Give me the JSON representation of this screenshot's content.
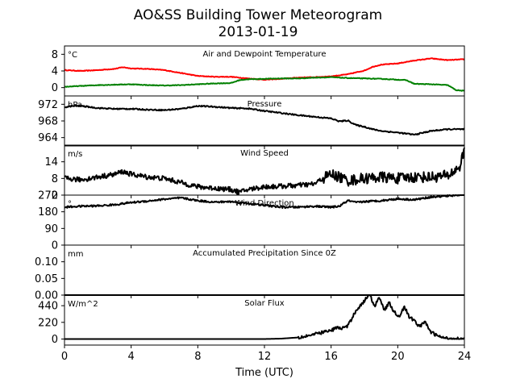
{
  "figure": {
    "title_line1": "AO&SS Building Tower Meteorogram",
    "title_line2": "2013-01-19",
    "xlabel": "Time (UTC)"
  },
  "chart_data": [
    {
      "type": "line",
      "title": "Air and Dewpoint Temperature",
      "unit": "°C",
      "ylim": [
        -2,
        10
      ],
      "yticks": [
        0,
        4,
        8
      ],
      "xlim": [
        0,
        24
      ],
      "xticks": [
        0,
        4,
        8,
        12,
        16,
        20,
        24
      ],
      "series": [
        {
          "color": "#ff0000",
          "x": [
            0,
            1,
            2,
            3,
            3.5,
            4,
            5,
            6,
            7,
            8,
            9,
            10,
            11,
            12,
            13,
            14,
            15,
            16,
            17,
            18,
            18.5,
            19,
            20,
            21,
            22,
            23,
            24
          ],
          "y": [
            4.2,
            4.0,
            4.2,
            4.5,
            4.9,
            4.6,
            4.5,
            4.2,
            3.5,
            2.8,
            2.6,
            2.6,
            2.2,
            1.9,
            2.1,
            2.4,
            2.5,
            2.7,
            3.2,
            4.1,
            5.0,
            5.5,
            5.8,
            6.5,
            7.0,
            6.6,
            6.8
          ]
        },
        {
          "color": "#008000",
          "x": [
            0,
            1,
            2,
            3,
            4,
            5,
            6,
            7,
            8,
            9,
            10,
            10.5,
            11,
            12,
            13,
            14,
            15,
            16,
            17,
            18,
            19,
            20,
            20.5,
            21,
            22,
            23,
            23.5,
            24
          ],
          "y": [
            0.2,
            0.4,
            0.6,
            0.7,
            0.8,
            0.6,
            0.5,
            0.6,
            0.8,
            1.0,
            1.1,
            1.8,
            2.0,
            2.1,
            2.2,
            2.2,
            2.4,
            2.5,
            2.3,
            2.2,
            2.1,
            1.9,
            1.8,
            0.9,
            0.8,
            0.6,
            -0.6,
            -0.8
          ]
        }
      ]
    },
    {
      "type": "line",
      "title": "Pressure",
      "unit": "hPa",
      "ylim": [
        962,
        974
      ],
      "yticks": [
        964,
        968,
        972
      ],
      "xlim": [
        0,
        24
      ],
      "series": [
        {
          "color": "#000000",
          "x": [
            0,
            0.5,
            1,
            2,
            3,
            4,
            5,
            6,
            7,
            8,
            9,
            10,
            11,
            12,
            13,
            14,
            15,
            16,
            16.5,
            17,
            17.5,
            18,
            18.5,
            19,
            20,
            21,
            22,
            23,
            24
          ],
          "y": [
            971.3,
            971.6,
            971.6,
            971.1,
            970.9,
            970.9,
            970.7,
            970.6,
            970.9,
            971.6,
            971.4,
            971.1,
            971.0,
            970.4,
            969.9,
            969.4,
            969.0,
            968.6,
            967.9,
            968.1,
            967.0,
            966.6,
            966.0,
            965.6,
            965.2,
            964.7,
            965.6,
            966.0,
            966.0
          ]
        }
      ]
    },
    {
      "type": "line",
      "title": "Wind Speed",
      "unit": "m/s",
      "ylim": [
        2,
        20
      ],
      "yticks": [
        2,
        8,
        14
      ],
      "xlim": [
        0,
        24
      ],
      "series": [
        {
          "color": "#000000",
          "x": [
            0,
            1,
            2,
            3,
            3.5,
            4,
            5,
            6,
            7,
            8,
            9,
            10,
            10.5,
            11,
            12,
            13,
            14,
            15,
            15.5,
            16,
            16.5,
            17,
            18,
            19,
            20,
            21,
            22,
            23,
            23.7,
            24
          ],
          "y": [
            8,
            7.5,
            8.5,
            9.5,
            10.5,
            9.5,
            8.5,
            8,
            6.5,
            5,
            4.5,
            4,
            3,
            4,
            5,
            5.2,
            5.5,
            6,
            8,
            9.5,
            8.5,
            7.2,
            8,
            8.5,
            8,
            8.5,
            8.5,
            9,
            12,
            18
          ]
        }
      ]
    },
    {
      "type": "line",
      "title": "Wind Direction",
      "unit": "°",
      "ylim": [
        0,
        270
      ],
      "yticks": [
        0,
        90,
        180,
        270
      ],
      "xlim": [
        0,
        24
      ],
      "series": [
        {
          "color": "#000000",
          "x": [
            0,
            1,
            2,
            3,
            4,
            5,
            6,
            7,
            8,
            9,
            10,
            11,
            12,
            13,
            14,
            15,
            16,
            16.5,
            17,
            17.5,
            18,
            19,
            20,
            21,
            22,
            23,
            24
          ],
          "y": [
            205,
            210,
            212,
            218,
            230,
            238,
            248,
            255,
            240,
            232,
            235,
            225,
            215,
            205,
            205,
            210,
            205,
            210,
            240,
            230,
            235,
            240,
            250,
            245,
            260,
            265,
            275
          ]
        }
      ]
    },
    {
      "type": "line",
      "title": "Accumulated Precipitation Since 0Z",
      "unit": "mm",
      "ylim": [
        0,
        0.15
      ],
      "yticks": [
        0.0,
        0.05,
        0.1
      ],
      "yticklabels": [
        "0.00",
        "0.05",
        "0.10"
      ],
      "xlim": [
        0,
        24
      ],
      "series": [
        {
          "color": "#000000",
          "x": [
            0,
            24
          ],
          "y": [
            0,
            0
          ]
        }
      ]
    },
    {
      "type": "line",
      "title": "Solar Flux",
      "unit": "W/m^2",
      "ylim": [
        -80,
        580
      ],
      "yticks": [
        0,
        220,
        440
      ],
      "xlim": [
        0,
        24
      ],
      "series": [
        {
          "color": "#000000",
          "x": [
            0,
            12,
            13,
            14,
            15,
            15.5,
            16,
            16.3,
            16.6,
            17,
            17.5,
            18,
            18.3,
            18.6,
            18.9,
            19.2,
            19.5,
            19.8,
            20.1,
            20.4,
            20.7,
            21,
            21.3,
            21.6,
            22,
            22.5,
            23,
            24
          ],
          "y": [
            0,
            0,
            5,
            20,
            60,
            90,
            110,
            150,
            140,
            170,
            380,
            500,
            600,
            430,
            560,
            380,
            480,
            350,
            300,
            430,
            280,
            250,
            160,
            230,
            90,
            30,
            5,
            0
          ]
        }
      ]
    }
  ]
}
